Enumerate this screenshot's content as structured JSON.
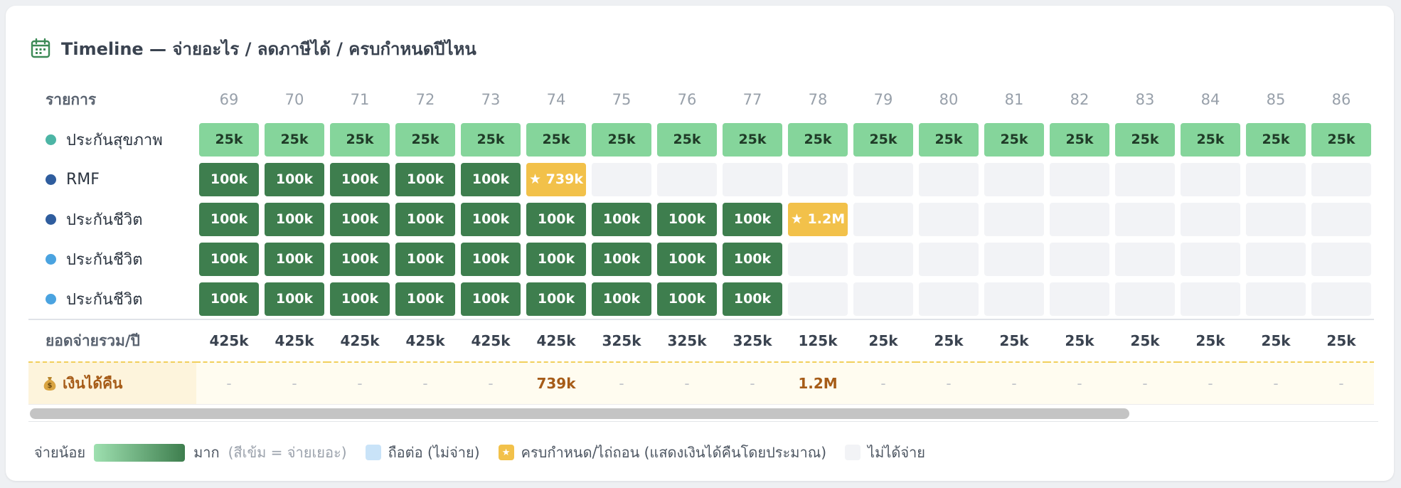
{
  "header": {
    "title": "Timeline — จ่ายอะไร / ลดภาษีได้ / ครบกำหนดปีไหน",
    "icon": "calendar-icon"
  },
  "table": {
    "label_header": "รายการ",
    "years": [
      "69",
      "70",
      "71",
      "72",
      "73",
      "74",
      "75",
      "76",
      "77",
      "78",
      "79",
      "80",
      "81",
      "82",
      "83",
      "84",
      "85",
      "86"
    ],
    "rows": [
      {
        "label": "ประกันสุขภาพ",
        "dot_color": "#4cb5a5",
        "cells": [
          {
            "t": "light",
            "v": "25k"
          },
          {
            "t": "light",
            "v": "25k"
          },
          {
            "t": "light",
            "v": "25k"
          },
          {
            "t": "light",
            "v": "25k"
          },
          {
            "t": "light",
            "v": "25k"
          },
          {
            "t": "light",
            "v": "25k"
          },
          {
            "t": "light",
            "v": "25k"
          },
          {
            "t": "light",
            "v": "25k"
          },
          {
            "t": "light",
            "v": "25k"
          },
          {
            "t": "light",
            "v": "25k"
          },
          {
            "t": "light",
            "v": "25k"
          },
          {
            "t": "light",
            "v": "25k"
          },
          {
            "t": "light",
            "v": "25k"
          },
          {
            "t": "light",
            "v": "25k"
          },
          {
            "t": "light",
            "v": "25k"
          },
          {
            "t": "light",
            "v": "25k"
          },
          {
            "t": "light",
            "v": "25k"
          },
          {
            "t": "light",
            "v": "25k"
          }
        ]
      },
      {
        "label": "RMF",
        "dot_color": "#2f5d9e",
        "cells": [
          {
            "t": "dark",
            "v": "100k"
          },
          {
            "t": "dark",
            "v": "100k"
          },
          {
            "t": "dark",
            "v": "100k"
          },
          {
            "t": "dark",
            "v": "100k"
          },
          {
            "t": "dark",
            "v": "100k"
          },
          {
            "t": "gold",
            "v": "★ 739k"
          },
          {
            "t": "empty",
            "v": ""
          },
          {
            "t": "empty",
            "v": ""
          },
          {
            "t": "empty",
            "v": ""
          },
          {
            "t": "empty",
            "v": ""
          },
          {
            "t": "empty",
            "v": ""
          },
          {
            "t": "empty",
            "v": ""
          },
          {
            "t": "empty",
            "v": ""
          },
          {
            "t": "empty",
            "v": ""
          },
          {
            "t": "empty",
            "v": ""
          },
          {
            "t": "empty",
            "v": ""
          },
          {
            "t": "empty",
            "v": ""
          },
          {
            "t": "empty",
            "v": ""
          }
        ]
      },
      {
        "label": "ประกันชีวิต",
        "dot_color": "#2f5d9e",
        "cells": [
          {
            "t": "dark",
            "v": "100k"
          },
          {
            "t": "dark",
            "v": "100k"
          },
          {
            "t": "dark",
            "v": "100k"
          },
          {
            "t": "dark",
            "v": "100k"
          },
          {
            "t": "dark",
            "v": "100k"
          },
          {
            "t": "dark",
            "v": "100k"
          },
          {
            "t": "dark",
            "v": "100k"
          },
          {
            "t": "dark",
            "v": "100k"
          },
          {
            "t": "dark",
            "v": "100k"
          },
          {
            "t": "gold",
            "v": "★ 1.2M"
          },
          {
            "t": "empty",
            "v": ""
          },
          {
            "t": "empty",
            "v": ""
          },
          {
            "t": "empty",
            "v": ""
          },
          {
            "t": "empty",
            "v": ""
          },
          {
            "t": "empty",
            "v": ""
          },
          {
            "t": "empty",
            "v": ""
          },
          {
            "t": "empty",
            "v": ""
          },
          {
            "t": "empty",
            "v": ""
          }
        ]
      },
      {
        "label": "ประกันชีวิต",
        "dot_color": "#4aa3e0",
        "cells": [
          {
            "t": "dark",
            "v": "100k"
          },
          {
            "t": "dark",
            "v": "100k"
          },
          {
            "t": "dark",
            "v": "100k"
          },
          {
            "t": "dark",
            "v": "100k"
          },
          {
            "t": "dark",
            "v": "100k"
          },
          {
            "t": "dark",
            "v": "100k"
          },
          {
            "t": "dark",
            "v": "100k"
          },
          {
            "t": "dark",
            "v": "100k"
          },
          {
            "t": "dark",
            "v": "100k"
          },
          {
            "t": "empty",
            "v": ""
          },
          {
            "t": "empty",
            "v": ""
          },
          {
            "t": "empty",
            "v": ""
          },
          {
            "t": "empty",
            "v": ""
          },
          {
            "t": "empty",
            "v": ""
          },
          {
            "t": "empty",
            "v": ""
          },
          {
            "t": "empty",
            "v": ""
          },
          {
            "t": "empty",
            "v": ""
          },
          {
            "t": "empty",
            "v": ""
          }
        ]
      },
      {
        "label": "ประกันชีวิต",
        "dot_color": "#4aa3e0",
        "cells": [
          {
            "t": "dark",
            "v": "100k"
          },
          {
            "t": "dark",
            "v": "100k"
          },
          {
            "t": "dark",
            "v": "100k"
          },
          {
            "t": "dark",
            "v": "100k"
          },
          {
            "t": "dark",
            "v": "100k"
          },
          {
            "t": "dark",
            "v": "100k"
          },
          {
            "t": "dark",
            "v": "100k"
          },
          {
            "t": "dark",
            "v": "100k"
          },
          {
            "t": "dark",
            "v": "100k"
          },
          {
            "t": "empty",
            "v": ""
          },
          {
            "t": "empty",
            "v": ""
          },
          {
            "t": "empty",
            "v": ""
          },
          {
            "t": "empty",
            "v": ""
          },
          {
            "t": "empty",
            "v": ""
          },
          {
            "t": "empty",
            "v": ""
          },
          {
            "t": "empty",
            "v": ""
          },
          {
            "t": "empty",
            "v": ""
          },
          {
            "t": "empty",
            "v": ""
          }
        ]
      }
    ],
    "totals_label": "ยอดจ่ายรวม/ปี",
    "totals": [
      "425k",
      "425k",
      "425k",
      "425k",
      "425k",
      "425k",
      "325k",
      "325k",
      "325k",
      "125k",
      "25k",
      "25k",
      "25k",
      "25k",
      "25k",
      "25k",
      "25k",
      "25k"
    ],
    "refund_label": "เงินได้คืน",
    "refund_icon": "money-bag-icon",
    "refunds": [
      "-",
      "-",
      "-",
      "-",
      "-",
      "739k",
      "-",
      "-",
      "-",
      "1.2M",
      "-",
      "-",
      "-",
      "-",
      "-",
      "-",
      "-",
      "-"
    ]
  },
  "legend": {
    "low_label": "จ่ายน้อย",
    "high_label": "มาก",
    "high_note": "(สีเข้ม = จ่ายเยอะ)",
    "hold_label": "ถือต่อ (ไม่จ่าย)",
    "maturity_label": "ครบกำหนด/ไถ่ถอน (แสดงเงินได้คืนโดยประมาณ)",
    "maturity_icon_text": "★",
    "none_label": "ไม่ได้จ่าย"
  },
  "colors": {
    "light": "#85d59b",
    "dark": "#3e7e4e",
    "gold": "#f2c14a",
    "empty": "#f2f3f6",
    "hold": "#c9e3f8"
  }
}
